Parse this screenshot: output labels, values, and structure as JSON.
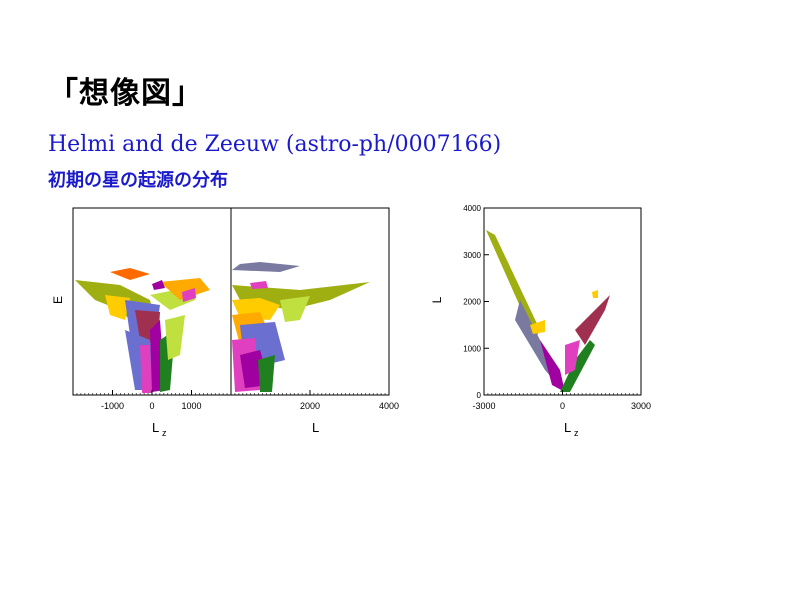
{
  "slide": {
    "title": "「想像図」",
    "reference": "Helmi and de Zeeuw (astro-ph/0007166)",
    "subtitle": "初期の星の起源の分布"
  },
  "palette": [
    "#9fae10",
    "#ffcc00",
    "#6a6fd0",
    "#a03050",
    "#e040c0",
    "#208020",
    "#ffaa00",
    "#ff6a00",
    "#7a7aa0",
    "#c0e040",
    "#f0e8a0",
    "#a000a0"
  ],
  "chart_data": [
    {
      "type": "scatter",
      "panel": "E-Lz",
      "xlabel": "L_z",
      "ylabel": "E",
      "xticks": [
        "-1000",
        "0",
        "1000"
      ],
      "yticks": [],
      "xlim": [
        -2000,
        2000
      ],
      "grid": false
    },
    {
      "type": "scatter",
      "panel": "E-L",
      "xlabel": "L",
      "ylabel": "",
      "xticks": [
        "2000",
        "4000"
      ],
      "yticks": [],
      "xlim": [
        0,
        4000
      ],
      "grid": false
    },
    {
      "type": "scatter",
      "panel": "L-Lz",
      "xlabel": "L_z",
      "ylabel": "L",
      "xticks": [
        "-3000",
        "0",
        "3000"
      ],
      "yticks": [
        "0",
        "1000",
        "2000",
        "3000",
        "4000"
      ],
      "xlim": [
        -3000,
        3000
      ],
      "ylim": [
        0,
        4000
      ],
      "grid": false
    }
  ]
}
